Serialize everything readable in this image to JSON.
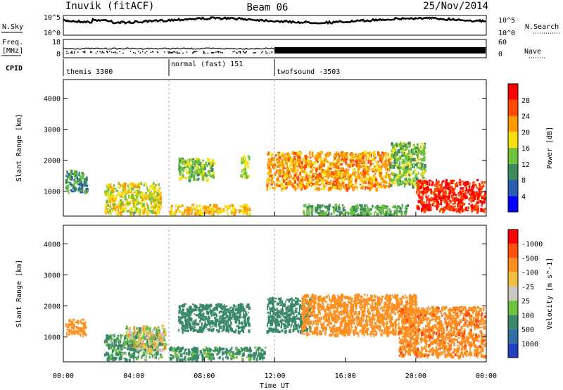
{
  "header": {
    "station": "Inuvik (fitACF)",
    "beam": "Beam 06",
    "date": "25/Nov/2014"
  },
  "sky_panel": {
    "left_label": "N.Sky",
    "right_label": "N.Search",
    "left_ticks": [
      "10^5",
      "10^0"
    ],
    "right_ticks": [
      "10^5",
      "10^0"
    ]
  },
  "freq_panel": {
    "left_label_top": "Freq.",
    "left_label_bottom": "[MHz]",
    "right_label": "Nave",
    "left_ticks": [
      "18",
      "8"
    ],
    "right_ticks": [
      "60",
      "0"
    ]
  },
  "cpid": {
    "label": "CPID",
    "segments": [
      {
        "name": "themis 3300",
        "start_hour": 0
      },
      {
        "name": "normal (fast) 151",
        "start_hour": 6
      },
      {
        "name": "twofsound -3503",
        "start_hour": 12
      }
    ]
  },
  "chart_data": [
    {
      "type": "heatmap",
      "title": "",
      "xlabel": "",
      "ylabel": "Slant Range [km]",
      "xlim_hours": [
        0,
        24
      ],
      "ylim": [
        200,
        4600
      ],
      "yticks": [
        1000,
        2000,
        3000,
        4000
      ],
      "colorbar": {
        "label": "Power [dB]",
        "levels": [
          4,
          8,
          12,
          16,
          20,
          24,
          28
        ],
        "colors": [
          "#0000ff",
          "#2b5fb0",
          "#3d8a5e",
          "#6ec23c",
          "#f4e010",
          "#ff9a00",
          "#ff4a00",
          "#ff0000"
        ]
      },
      "echo_regions": [
        {
          "hours": [
            0.1,
            1.3
          ],
          "range": [
            1000,
            1700
          ],
          "power": 10
        },
        {
          "hours": [
            2.3,
            5.5
          ],
          "range": [
            300,
            1300
          ],
          "power": 18
        },
        {
          "hours": [
            6.0,
            10.5
          ],
          "range": [
            300,
            600
          ],
          "power": 20
        },
        {
          "hours": [
            6.5,
            8.5
          ],
          "range": [
            1400,
            2100
          ],
          "power": 14
        },
        {
          "hours": [
            10.0,
            10.5
          ],
          "range": [
            1500,
            2200
          ],
          "power": 16
        },
        {
          "hours": [
            11.5,
            18.5
          ],
          "range": [
            1100,
            2300
          ],
          "power": 22
        },
        {
          "hours": [
            13.5,
            19.5
          ],
          "range": [
            250,
            600
          ],
          "power": 12
        },
        {
          "hours": [
            18.5,
            20.5
          ],
          "range": [
            1200,
            2600
          ],
          "power": 14
        },
        {
          "hours": [
            20.0,
            23.9
          ],
          "range": [
            400,
            1400
          ],
          "power": 28
        }
      ]
    },
    {
      "type": "heatmap",
      "title": "",
      "xlabel": "Time UT",
      "ylabel": "Slant Range [km]",
      "xlim_hours": [
        0,
        24
      ],
      "xticks": [
        "00:00",
        "04:00",
        "08:00",
        "12:00",
        "16:00",
        "20:00",
        "00:00"
      ],
      "ylim": [
        200,
        4600
      ],
      "yticks": [
        1000,
        2000,
        3000,
        4000
      ],
      "colorbar": {
        "label": "Velocity [m s^-1]",
        "levels": [
          1000,
          500,
          100,
          25,
          -25,
          -100,
          -500,
          -1000
        ],
        "colors": [
          "#2040c0",
          "#3070a0",
          "#3a8a6a",
          "#6ec23c",
          "#c8c8c0",
          "#f0c040",
          "#ff9020",
          "#ff5010",
          "#ff0000"
        ]
      },
      "echo_regions": [
        {
          "hours": [
            0.1,
            1.2
          ],
          "range": [
            1100,
            1600
          ],
          "velocity": -300
        },
        {
          "hours": [
            2.3,
            5.5
          ],
          "range": [
            300,
            1100
          ],
          "velocity": 150
        },
        {
          "hours": [
            3.5,
            5.8
          ],
          "range": [
            600,
            1400
          ],
          "velocity": 0
        },
        {
          "hours": [
            6.0,
            11.5
          ],
          "range": [
            300,
            700
          ],
          "velocity": 200
        },
        {
          "hours": [
            6.5,
            10.5
          ],
          "range": [
            1200,
            2100
          ],
          "velocity": 300
        },
        {
          "hours": [
            11.5,
            14.0
          ],
          "range": [
            1200,
            2300
          ],
          "velocity": 250
        },
        {
          "hours": [
            13.5,
            20.0
          ],
          "range": [
            1100,
            2400
          ],
          "velocity": -300
        },
        {
          "hours": [
            19.0,
            23.9
          ],
          "range": [
            400,
            2000
          ],
          "velocity": -400
        }
      ]
    }
  ]
}
